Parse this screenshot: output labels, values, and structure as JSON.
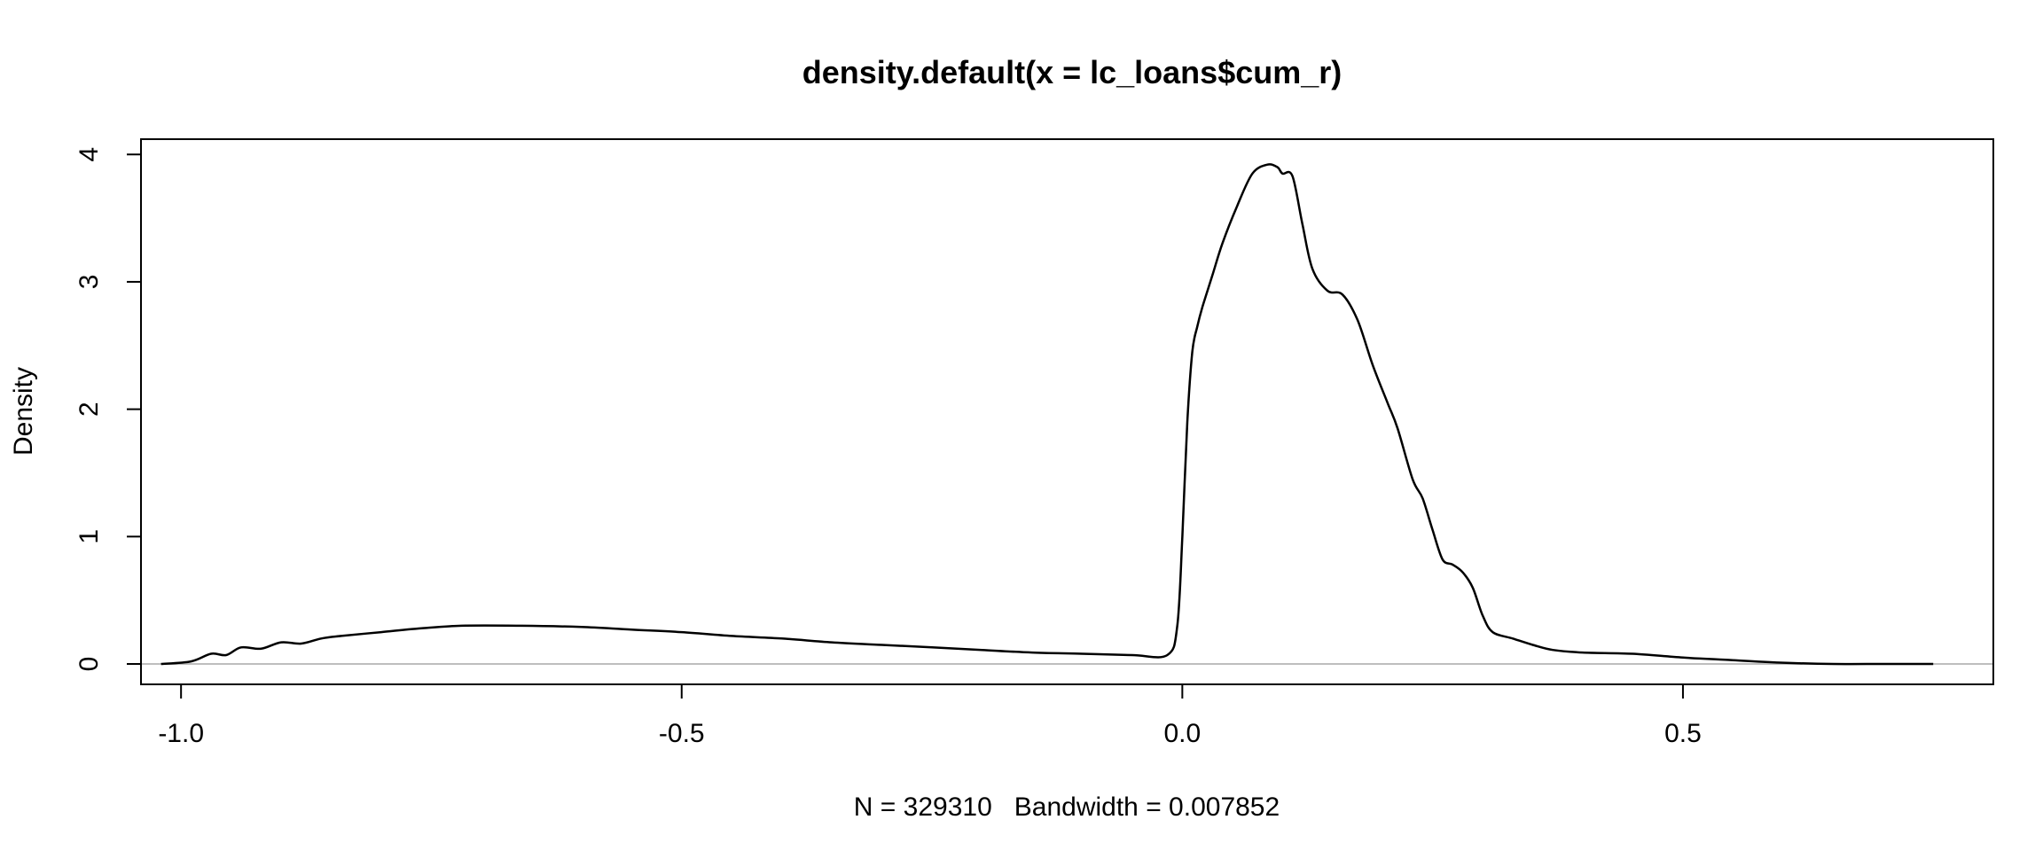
{
  "chart_data": {
    "type": "line",
    "title": "density.default(x = lc_loans$cum_r)",
    "xlabel": "N = 329310   Bandwidth = 0.007852",
    "ylabel": "Density",
    "xlim": [
      -1.04,
      0.81
    ],
    "ylim": [
      -0.16,
      4.12
    ],
    "x_ticks": [
      -1.0,
      -0.5,
      0.0,
      0.5
    ],
    "x_tick_labels": [
      "-1.0",
      "-0.5",
      "0.0",
      "0.5"
    ],
    "y_ticks": [
      0,
      1,
      2,
      3,
      4
    ],
    "y_tick_labels": [
      "0",
      "1",
      "2",
      "3",
      "4"
    ],
    "grid": false,
    "baseline": 0,
    "series": [
      {
        "color": "#000000",
        "x": [
          -1.02,
          -0.99,
          -0.97,
          -0.955,
          -0.94,
          -0.92,
          -0.9,
          -0.88,
          -0.86,
          -0.84,
          -0.8,
          -0.76,
          -0.72,
          -0.66,
          -0.6,
          -0.55,
          -0.5,
          -0.45,
          -0.4,
          -0.35,
          -0.3,
          -0.25,
          -0.2,
          -0.15,
          -0.1,
          -0.05,
          -0.015,
          -0.005,
          0.0,
          0.005,
          0.01,
          0.015,
          0.02,
          0.03,
          0.04,
          0.055,
          0.07,
          0.085,
          0.095,
          0.1,
          0.11,
          0.12,
          0.13,
          0.145,
          0.16,
          0.175,
          0.19,
          0.205,
          0.215,
          0.23,
          0.24,
          0.25,
          0.26,
          0.27,
          0.28,
          0.29,
          0.3,
          0.31,
          0.33,
          0.35,
          0.37,
          0.4,
          0.45,
          0.5,
          0.55,
          0.6,
          0.65,
          0.7,
          0.75
        ],
        "y": [
          0.0,
          0.02,
          0.08,
          0.07,
          0.13,
          0.12,
          0.17,
          0.16,
          0.2,
          0.22,
          0.25,
          0.28,
          0.3,
          0.3,
          0.29,
          0.27,
          0.25,
          0.22,
          0.2,
          0.17,
          0.15,
          0.13,
          0.11,
          0.09,
          0.08,
          0.07,
          0.07,
          0.3,
          1.0,
          1.9,
          2.45,
          2.65,
          2.8,
          3.05,
          3.3,
          3.6,
          3.85,
          3.92,
          3.9,
          3.85,
          3.83,
          3.45,
          3.1,
          2.93,
          2.9,
          2.7,
          2.35,
          2.05,
          1.85,
          1.45,
          1.3,
          1.05,
          0.82,
          0.78,
          0.72,
          0.6,
          0.38,
          0.25,
          0.2,
          0.15,
          0.11,
          0.09,
          0.08,
          0.05,
          0.03,
          0.01,
          0.0,
          0.0,
          0.0
        ]
      }
    ]
  }
}
